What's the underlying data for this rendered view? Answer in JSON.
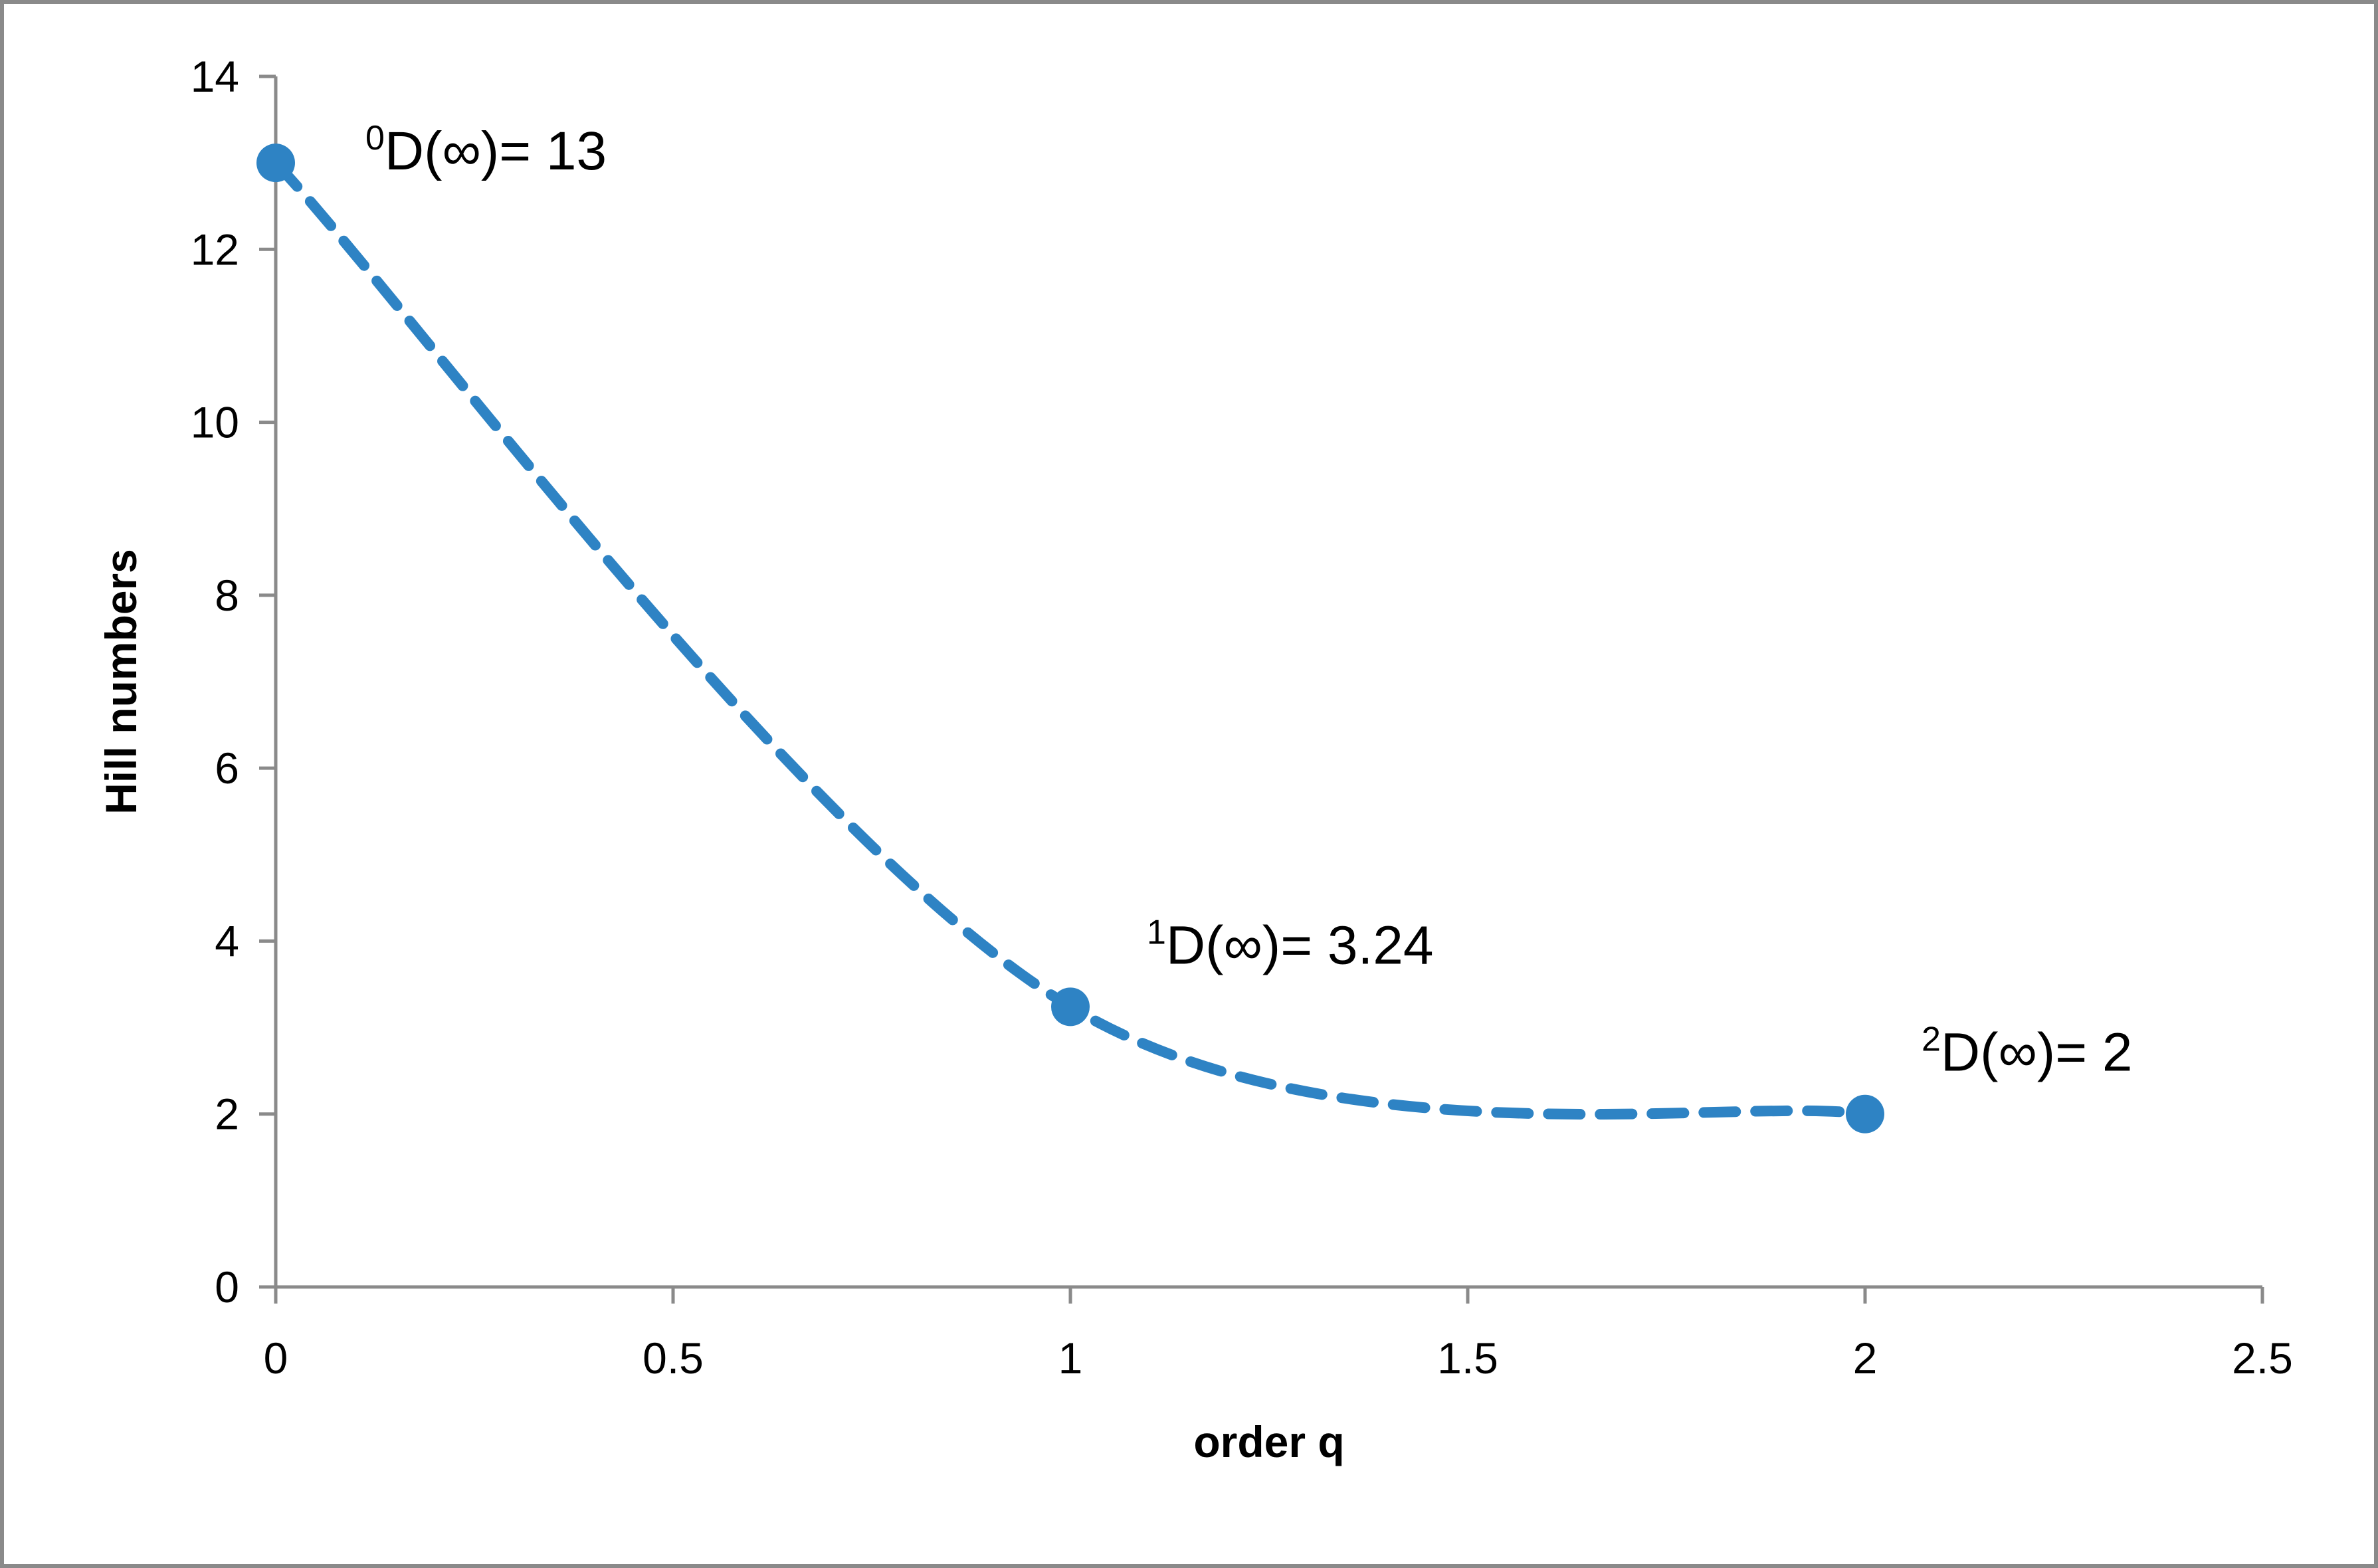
{
  "chart_data": {
    "type": "line",
    "xlabel": "order q",
    "ylabel": "Hill numbers",
    "xlim": [
      0,
      2.5
    ],
    "ylim": [
      0,
      14
    ],
    "x_ticks": [
      "0",
      "0.5",
      "1",
      "1.5",
      "2",
      "2.5"
    ],
    "y_ticks": [
      "0",
      "2",
      "4",
      "6",
      "8",
      "10",
      "12",
      "14"
    ],
    "grid": false,
    "legend": "none",
    "line_style": "dashed-smoothed",
    "series": [
      {
        "color": "#2e83c4",
        "points": [
          {
            "x": 0,
            "y": 13,
            "label_sup": "0",
            "label_main": "D(∞)= 13"
          },
          {
            "x": 1,
            "y": 3.24,
            "label_sup": "1",
            "label_main": "D(∞)= 3.24"
          },
          {
            "x": 2,
            "y": 2,
            "label_sup": "2",
            "label_main": "D(∞)= 2"
          }
        ]
      }
    ],
    "colors": {
      "series": "#2e83c4",
      "axis": "#8a8a8a",
      "frame": "#8a8a8a"
    }
  }
}
